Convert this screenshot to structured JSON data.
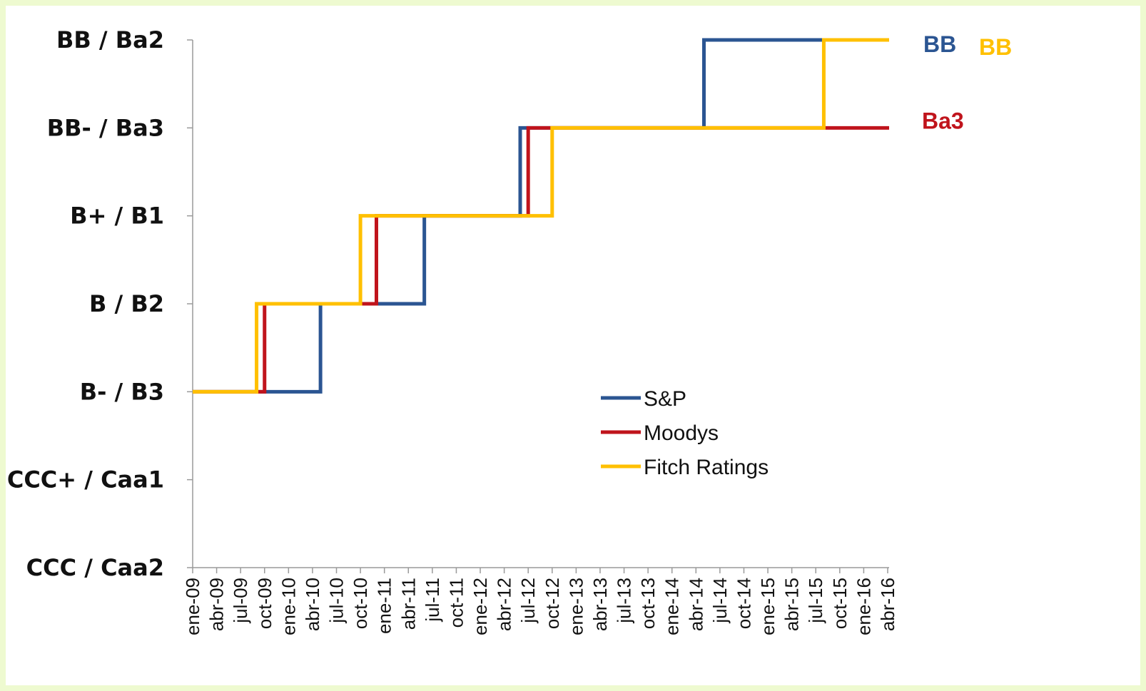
{
  "colors": {
    "sp": "#2b5592",
    "moodys": "#c0141c",
    "fitch": "#ffc000",
    "axis": "#9a9a9a"
  },
  "chart_data": {
    "type": "line",
    "step": true,
    "categories": [
      "ene-09",
      "abr-09",
      "jul-09",
      "oct-09",
      "ene-10",
      "abr-10",
      "jul-10",
      "oct-10",
      "ene-11",
      "abr-11",
      "jul-11",
      "oct-11",
      "ene-12",
      "abr-12",
      "jul-12",
      "oct-12",
      "ene-13",
      "abr-13",
      "jul-13",
      "oct-13",
      "ene-14",
      "abr-14",
      "jul-14",
      "oct-14",
      "ene-15",
      "abr-15",
      "jul-15",
      "oct-15",
      "ene-16",
      "abr-16"
    ],
    "y_levels": [
      "CCC / Caa2",
      "CCC+ / Caa1",
      "B- / B3",
      "B / B2",
      "B+ / B1",
      "BB- / Ba3",
      "BB / Ba2"
    ],
    "x_range": [
      "2009-01",
      "2016-04"
    ],
    "legend_position": "center",
    "grid": false,
    "series": [
      {
        "name": "S&P",
        "color": "#2b5592",
        "steps": [
          {
            "date": "2009-01",
            "level": "B- / B3"
          },
          {
            "date": "2010-05",
            "level": "B / B2"
          },
          {
            "date": "2011-06",
            "level": "B+ / B1"
          },
          {
            "date": "2012-06",
            "level": "BB- / Ba3"
          },
          {
            "date": "2014-05",
            "level": "BB / Ba2"
          }
        ],
        "end_label": "BB"
      },
      {
        "name": "Moodys",
        "color": "#c0141c",
        "steps": [
          {
            "date": "2009-01",
            "level": "B- / B3"
          },
          {
            "date": "2009-10",
            "level": "B / B2"
          },
          {
            "date": "2010-12",
            "level": "B+ / B1"
          },
          {
            "date": "2012-07",
            "level": "BB- / Ba3"
          }
        ],
        "end_label": "Ba3"
      },
      {
        "name": "Fitch Ratings",
        "color": "#ffc000",
        "steps": [
          {
            "date": "2009-01",
            "level": "B- / B3"
          },
          {
            "date": "2009-09",
            "level": "B / B2"
          },
          {
            "date": "2010-10",
            "level": "B+ / B1"
          },
          {
            "date": "2012-10",
            "level": "BB- / Ba3"
          },
          {
            "date": "2015-08",
            "level": "BB / Ba2"
          }
        ],
        "end_label": "BB"
      }
    ]
  }
}
